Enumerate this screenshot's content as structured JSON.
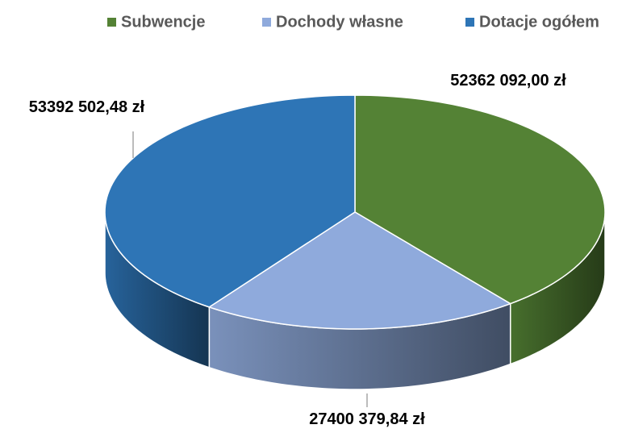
{
  "chart_data": {
    "type": "pie3d",
    "categories": [
      "Subwencje",
      "Dochody własne",
      "Dotacje ogółem"
    ],
    "values": [
      52362092.0,
      27400379.84,
      53392502.48
    ],
    "value_labels": [
      "52362 092,00 zł",
      "27400 379,84 zł",
      "53392 502,48 zł"
    ],
    "colors": [
      "#548235",
      "#8faadc",
      "#2e75b6"
    ],
    "legend": "top"
  }
}
